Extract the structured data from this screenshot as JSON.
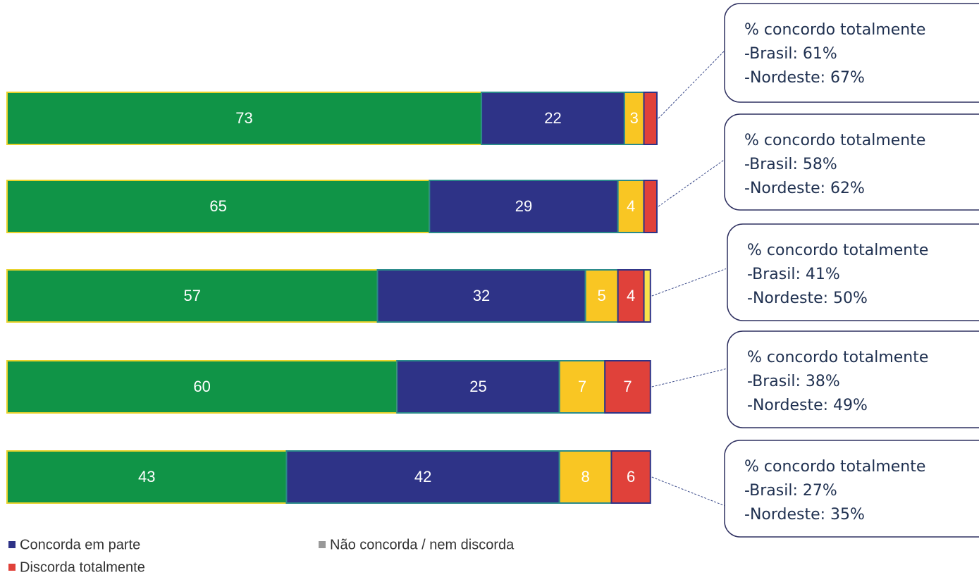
{
  "chart_data": {
    "type": "stacked-bar-horizontal",
    "categories": [
      null,
      null,
      null,
      null,
      null
    ],
    "series": [
      {
        "name": null,
        "color": "#109447",
        "values": [
          73,
          65,
          57,
          60,
          43
        ]
      },
      {
        "name": "Concorda em parte",
        "color": "#2e3387",
        "values": [
          22,
          29,
          32,
          25,
          42
        ]
      },
      {
        "name": "Não concorda / nem discorda",
        "color": "#f9c623",
        "legend_color": "#999999",
        "values": [
          3,
          4,
          5,
          7,
          8
        ]
      },
      {
        "name": "Discorda totalmente",
        "color": "#e0413a",
        "values": [
          2,
          2,
          4,
          7,
          6
        ]
      },
      {
        "name": null,
        "color": "#f9e34a",
        "values": [
          null,
          null,
          1,
          null,
          null
        ]
      }
    ],
    "callouts": [
      {
        "lines": [
          "% concordo totalmente",
          "-Brasil: 61%",
          "-Nordeste: 67%"
        ]
      },
      {
        "lines": [
          "% concordo totalmente",
          "-Brasil: 58%",
          "-Nordeste: 62%"
        ]
      },
      {
        "lines": [
          "% concordo totalmente",
          "-Brasil: 41%",
          "-Nordeste: 50%"
        ]
      },
      {
        "lines": [
          "% concordo totalmente",
          "-Brasil: 38%",
          "-Nordeste: 49%"
        ]
      },
      {
        "lines": [
          "% concordo totalmente",
          "-Brasil: 27%",
          "-Nordeste: 35%"
        ]
      }
    ]
  }
}
